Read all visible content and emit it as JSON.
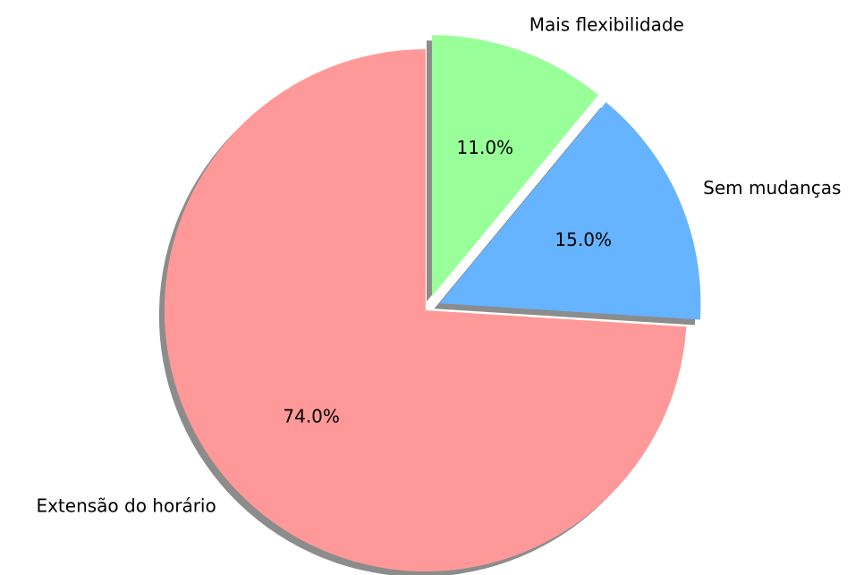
{
  "chart_data": {
    "type": "pie",
    "categories": [
      "Extensão do horário",
      "Sem mudanças",
      "Mais flexibilidade"
    ],
    "values": [
      74,
      15,
      11
    ],
    "value_labels": [
      "74.0%",
      "15.0%",
      "11.0%"
    ],
    "colors": [
      "#ff9999",
      "#66b3ff",
      "#99ff99"
    ],
    "startangle": 90,
    "shadow": true
  }
}
